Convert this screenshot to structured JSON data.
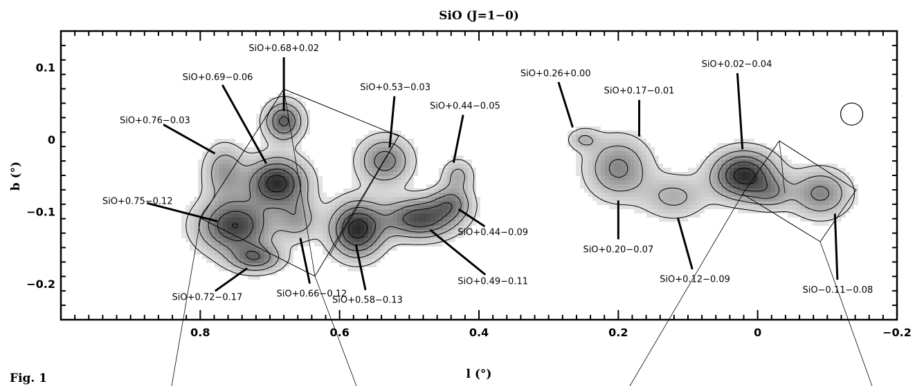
{
  "chart_data": {
    "type": "heatmap",
    "title": "SiO (J=1−0)",
    "xlabel": "l (°)",
    "ylabel": "b (°)",
    "xlim": [
      1.0,
      -0.2
    ],
    "ylim": [
      -0.25,
      0.15
    ],
    "xticks": [
      0.8,
      0.6,
      0.4,
      0.2,
      0,
      -0.2
    ],
    "xtick_labels": [
      "0.8",
      "0.6",
      "0.4",
      "0.2",
      "0",
      "−0.2"
    ],
    "yticks": [
      0.1,
      0,
      -0.1,
      -0.2
    ],
    "ytick_labels": [
      "0.1",
      "0",
      "−0.1",
      "−0.2"
    ],
    "sources": [
      {
        "name": "SiO+0.68+0.02",
        "l": 0.68,
        "b": 0.02,
        "label_l": 0.68,
        "label_b": 0.127
      },
      {
        "name": "SiO+0.69−0.06",
        "l": 0.69,
        "b": -0.06,
        "label_l": 0.775,
        "label_b": 0.087
      },
      {
        "name": "SiO+0.76−0.03",
        "l": 0.76,
        "b": -0.03,
        "label_l": 0.865,
        "label_b": 0.027
      },
      {
        "name": "SiO+0.75−0.12",
        "l": 0.75,
        "b": -0.12,
        "label_l": 0.89,
        "label_b": -0.085
      },
      {
        "name": "SiO+0.72−0.17",
        "l": 0.72,
        "b": -0.17,
        "label_l": 0.79,
        "label_b": -0.218
      },
      {
        "name": "SiO+0.66−0.12",
        "l": 0.66,
        "b": -0.12,
        "label_l": 0.64,
        "label_b": -0.213
      },
      {
        "name": "SiO+0.58−0.13",
        "l": 0.58,
        "b": -0.13,
        "label_l": 0.56,
        "label_b": -0.222
      },
      {
        "name": "SiO+0.53−0.03",
        "l": 0.53,
        "b": -0.03,
        "label_l": 0.52,
        "label_b": 0.073
      },
      {
        "name": "SiO+0.44−0.05",
        "l": 0.44,
        "b": -0.05,
        "label_l": 0.42,
        "label_b": 0.047
      },
      {
        "name": "SiO+0.44−0.09",
        "l": 0.44,
        "b": -0.09,
        "label_l": 0.38,
        "label_b": -0.128
      },
      {
        "name": "SiO+0.49−0.11",
        "l": 0.49,
        "b": -0.11,
        "label_l": 0.38,
        "label_b": -0.196
      },
      {
        "name": "SiO+0.26+0.00",
        "l": 0.26,
        "b": 0.0,
        "label_l": 0.29,
        "label_b": 0.092
      },
      {
        "name": "SiO+0.17−0.01",
        "l": 0.17,
        "b": -0.01,
        "label_l": 0.17,
        "label_b": 0.068
      },
      {
        "name": "SiO+0.20−0.07",
        "l": 0.2,
        "b": -0.07,
        "label_l": 0.2,
        "label_b": -0.152
      },
      {
        "name": "SiO+0.02−0.04",
        "l": 0.02,
        "b": -0.04,
        "label_l": 0.03,
        "label_b": 0.105
      },
      {
        "name": "SiO+0.12−0.09",
        "l": 0.12,
        "b": -0.09,
        "label_l": 0.09,
        "label_b": -0.193
      },
      {
        "name": "SiO−0.11−0.08",
        "l": -0.11,
        "b": -0.08,
        "label_l": -0.115,
        "label_b": -0.208
      }
    ],
    "emission_peaks": [
      {
        "l": 0.68,
        "b": 0.025,
        "amp": 0.75,
        "sl": 0.018,
        "sb": 0.018
      },
      {
        "l": 0.69,
        "b": -0.06,
        "amp": 1.0,
        "sl": 0.028,
        "sb": 0.022
      },
      {
        "l": 0.765,
        "b": -0.045,
        "amp": 0.45,
        "sl": 0.02,
        "sb": 0.025
      },
      {
        "l": 0.75,
        "b": -0.12,
        "amp": 0.9,
        "sl": 0.035,
        "sb": 0.025
      },
      {
        "l": 0.72,
        "b": -0.165,
        "amp": 0.6,
        "sl": 0.025,
        "sb": 0.013
      },
      {
        "l": 0.66,
        "b": -0.11,
        "amp": 0.4,
        "sl": 0.02,
        "sb": 0.02
      },
      {
        "l": 0.575,
        "b": -0.125,
        "amp": 1.0,
        "sl": 0.025,
        "sb": 0.025
      },
      {
        "l": 0.535,
        "b": -0.03,
        "amp": 0.6,
        "sl": 0.025,
        "sb": 0.022
      },
      {
        "l": 0.485,
        "b": -0.11,
        "amp": 0.85,
        "sl": 0.035,
        "sb": 0.018
      },
      {
        "l": 0.44,
        "b": -0.088,
        "amp": 0.5,
        "sl": 0.02,
        "sb": 0.015
      },
      {
        "l": 0.43,
        "b": -0.05,
        "amp": 0.35,
        "sl": 0.015,
        "sb": 0.015
      },
      {
        "l": 0.2,
        "b": -0.04,
        "amp": 0.55,
        "sl": 0.03,
        "sb": 0.028
      },
      {
        "l": 0.12,
        "b": -0.08,
        "amp": 0.35,
        "sl": 0.03,
        "sb": 0.02
      },
      {
        "l": 0.02,
        "b": -0.05,
        "amp": 1.0,
        "sl": 0.03,
        "sb": 0.022
      },
      {
        "l": -0.02,
        "b": -0.075,
        "amp": 0.35,
        "sl": 0.02,
        "sb": 0.015
      },
      {
        "l": -0.09,
        "b": -0.075,
        "amp": 0.55,
        "sl": 0.028,
        "sb": 0.022
      },
      {
        "l": 0.25,
        "b": 0.0,
        "amp": 0.3,
        "sl": 0.015,
        "sb": 0.01
      }
    ],
    "beam_marker": {
      "l": -0.135,
      "b": 0.035
    }
  },
  "figure_caption": "Fig. 1"
}
